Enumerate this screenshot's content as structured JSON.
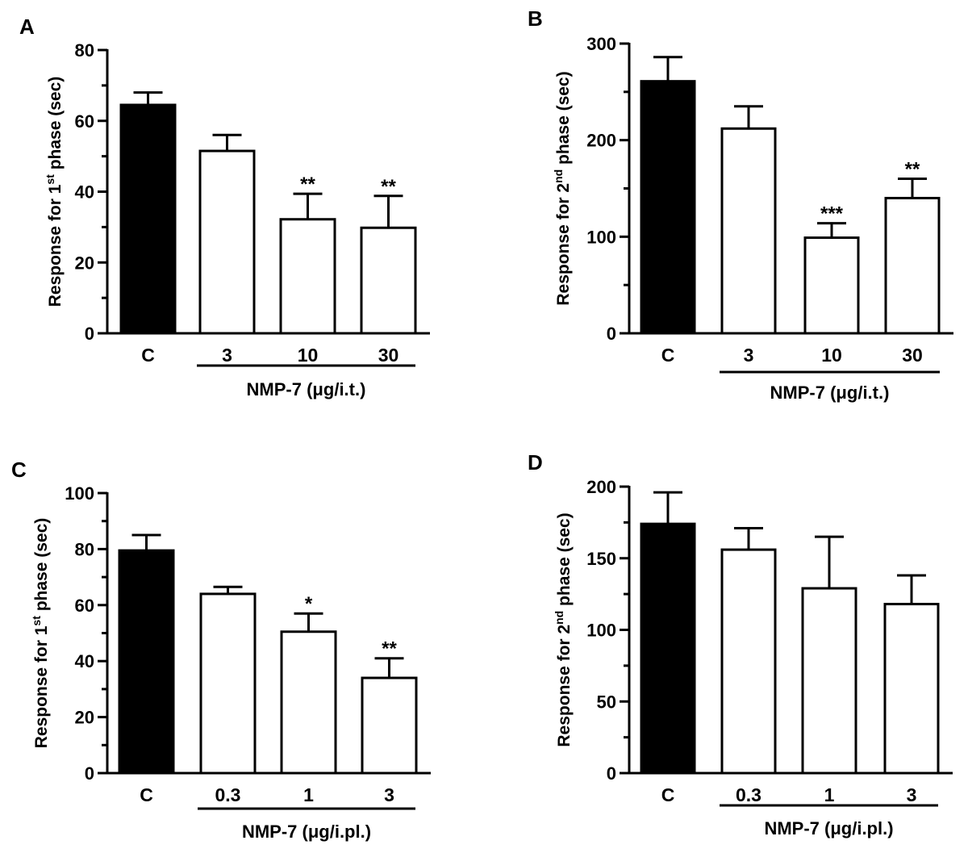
{
  "chart_data": [
    {
      "type": "bar",
      "panel_label": "A",
      "ylabel_pre": "Response for 1",
      "ylabel_sup": "st",
      "ylabel_post": " phase (sec)",
      "categories": [
        "C",
        "3",
        "10",
        "30"
      ],
      "values": [
        64.5,
        51.5,
        32.2,
        29.8
      ],
      "errors": [
        3.5,
        4.5,
        7.2,
        9.0
      ],
      "significance": [
        "",
        "",
        "**",
        "**"
      ],
      "fills": [
        "#000000",
        "#ffffff",
        "#ffffff",
        "#ffffff"
      ],
      "ylim": [
        0,
        80
      ],
      "yticks": [
        0,
        20,
        40,
        60,
        80
      ],
      "yminor": [
        10,
        30,
        50,
        70
      ],
      "group_label": "NMP-7 (μg/i.t.)"
    },
    {
      "type": "bar",
      "panel_label": "B",
      "ylabel_pre": "Response for 2",
      "ylabel_sup": "nd",
      "ylabel_post": " phase (sec)",
      "categories": [
        "C",
        "3",
        "10",
        "30"
      ],
      "values": [
        261,
        212,
        99,
        140
      ],
      "errors": [
        25,
        23,
        15,
        20
      ],
      "significance": [
        "",
        "",
        "***",
        "**"
      ],
      "fills": [
        "#000000",
        "#ffffff",
        "#ffffff",
        "#ffffff"
      ],
      "ylim": [
        0,
        300
      ],
      "yticks": [
        0,
        100,
        200,
        300
      ],
      "yminor": [
        50,
        150,
        250
      ],
      "group_label": "NMP-7 (μg/i.t.)"
    },
    {
      "type": "bar",
      "panel_label": "C",
      "ylabel_pre": "Response for 1",
      "ylabel_sup": "st",
      "ylabel_post": " phase (sec)",
      "categories": [
        "C",
        "0.3",
        "1",
        "3"
      ],
      "values": [
        79.5,
        64,
        50.5,
        34
      ],
      "errors": [
        5.5,
        2.5,
        6.5,
        7.0
      ],
      "significance": [
        "",
        "",
        "*",
        "**"
      ],
      "fills": [
        "#000000",
        "#ffffff",
        "#ffffff",
        "#ffffff"
      ],
      "ylim": [
        0,
        100
      ],
      "yticks": [
        0,
        20,
        40,
        60,
        80,
        100
      ],
      "yminor": [
        10,
        30,
        50,
        70,
        90
      ],
      "group_label": "NMP-7 (μg/i.pl.)"
    },
    {
      "type": "bar",
      "panel_label": "D",
      "ylabel_pre": "Response for 2",
      "ylabel_sup": "nd",
      "ylabel_post": " phase (sec)",
      "categories": [
        "C",
        "0.3",
        "1",
        "3"
      ],
      "values": [
        174,
        156,
        129,
        118
      ],
      "errors": [
        22,
        15,
        36,
        20
      ],
      "significance": [
        "",
        "",
        "",
        ""
      ],
      "fills": [
        "#000000",
        "#ffffff",
        "#ffffff",
        "#ffffff"
      ],
      "ylim": [
        0,
        200
      ],
      "yticks": [
        0,
        50,
        100,
        150,
        200
      ],
      "yminor": [
        25,
        75,
        125,
        175
      ],
      "group_label": "NMP-7 (μg/i.pl.)"
    }
  ]
}
